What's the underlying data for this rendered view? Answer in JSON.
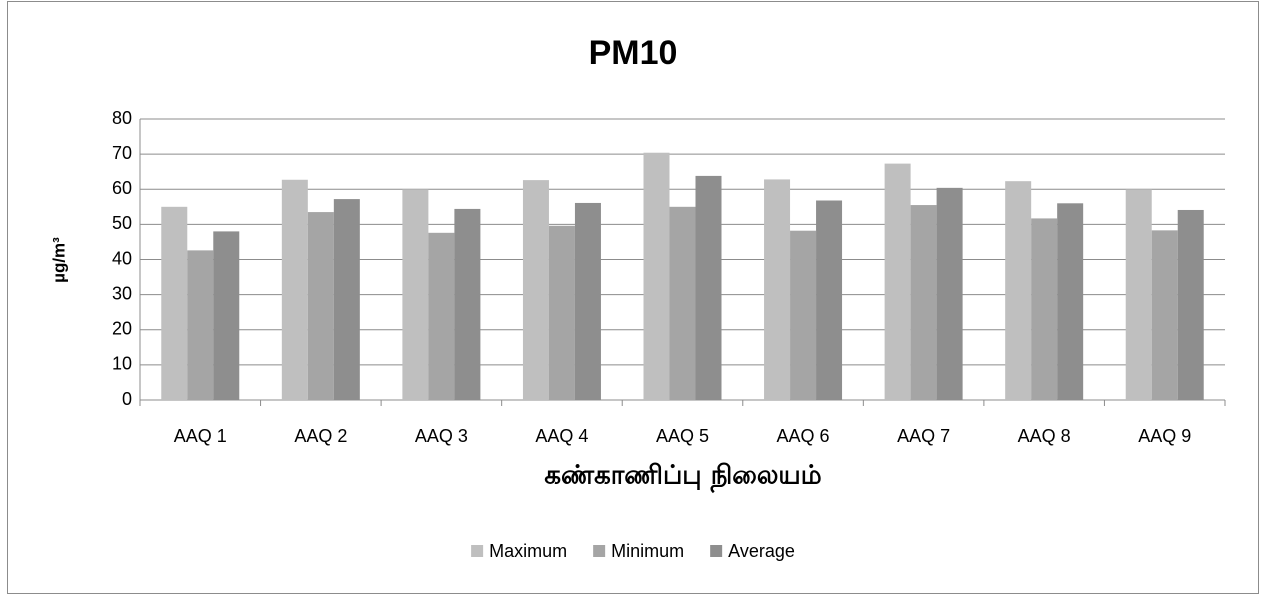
{
  "chart_data": {
    "type": "bar",
    "title": "PM10",
    "x_label": "கண்காணிப்பு நிலையம்",
    "y_label": "µg/m³",
    "categories": [
      "AAQ 1",
      "AAQ 2",
      "AAQ 3",
      "AAQ 4",
      "AAQ 5",
      "AAQ 6",
      "AAQ 7",
      "AAQ 8",
      "AAQ 9"
    ],
    "series": [
      {
        "name": "Maximum",
        "color": "#bfbfbf",
        "values": [
          55,
          62.7,
          60,
          62.6,
          70.4,
          62.8,
          67.3,
          62.3,
          60
        ]
      },
      {
        "name": "Minimum",
        "color": "#a5a5a5",
        "values": [
          42.6,
          53.5,
          47.6,
          49.6,
          55,
          48.2,
          55.5,
          51.7,
          48.3
        ]
      },
      {
        "name": "Average",
        "color": "#8e8e8e",
        "values": [
          48,
          57.2,
          54.4,
          56.1,
          63.8,
          56.8,
          60.4,
          56,
          54.1
        ]
      }
    ],
    "ylim": [
      0,
      80
    ],
    "yticks": [
      0,
      10,
      20,
      30,
      40,
      50,
      60,
      70,
      80
    ],
    "grid": true,
    "legend": "bottom"
  }
}
